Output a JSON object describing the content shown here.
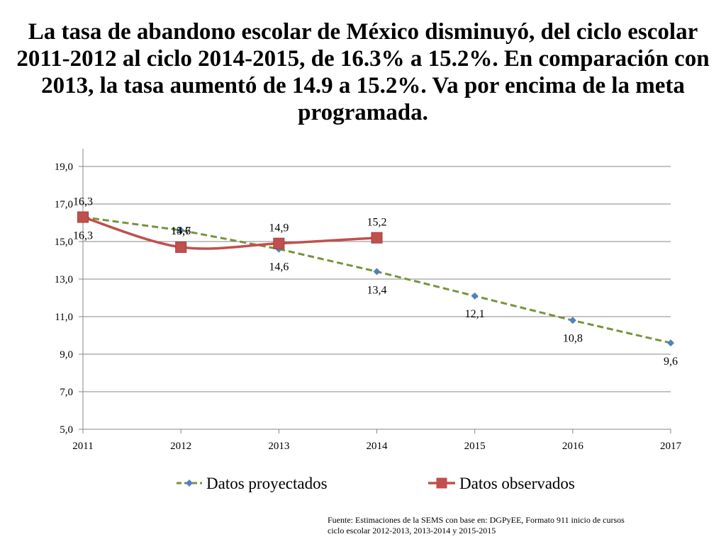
{
  "title": "La tasa de abandono escolar de México disminuyó, del ciclo escolar 2011-2012 al ciclo 2014-2015, de 16.3% a 15.2%. En comparación con 2013, la tasa aumentó de 14.9 a 15.2%. Va por encima de la meta programada.",
  "source_line1": "Fuente: Estimaciones de la SEMS con base en: DGPyEE, Formato 911  inicio de cursos",
  "source_line2": "ciclo escolar 2012-2013, 2013-2014 y 2015-2015",
  "chart_data": {
    "type": "line",
    "title": "",
    "xlabel": "",
    "ylabel": "",
    "x": [
      2011,
      2012,
      2013,
      2014,
      2015,
      2016,
      2017
    ],
    "x_tick_labels": [
      "2011",
      "2012",
      "2013",
      "2014",
      "2015",
      "2016",
      "2017"
    ],
    "ylim": [
      5,
      19
    ],
    "y_ticks": [
      5,
      7,
      9,
      11,
      13,
      15,
      17,
      19
    ],
    "y_tick_labels": [
      "5,0",
      "7,0",
      "9,0",
      "11,0",
      "13,0",
      "15,0",
      "17,0",
      "19,0"
    ],
    "grid": true,
    "legend_position": "bottom",
    "series": [
      {
        "name": "Datos proyectados",
        "color": "#77933C",
        "marker_color": "#4F81BD",
        "style": "dashed",
        "marker": "diamond",
        "x": [
          2011,
          2012,
          2013,
          2014,
          2015,
          2016,
          2017
        ],
        "values": [
          16.3,
          15.6,
          14.6,
          13.4,
          12.1,
          10.8,
          9.6
        ],
        "labels": [
          "16,3",
          "15,6",
          "14,6",
          "13,4",
          "12,1",
          "10,8",
          "9,6"
        ]
      },
      {
        "name": "Datos observados",
        "color": "#C0504D",
        "marker_color": "#C0504D",
        "style": "solid",
        "marker": "square",
        "x": [
          2011,
          2012,
          2013,
          2014
        ],
        "values": [
          16.3,
          14.7,
          14.9,
          15.2
        ],
        "labels": [
          "16,3",
          "14,7",
          "14,9",
          "15,2"
        ]
      }
    ]
  }
}
